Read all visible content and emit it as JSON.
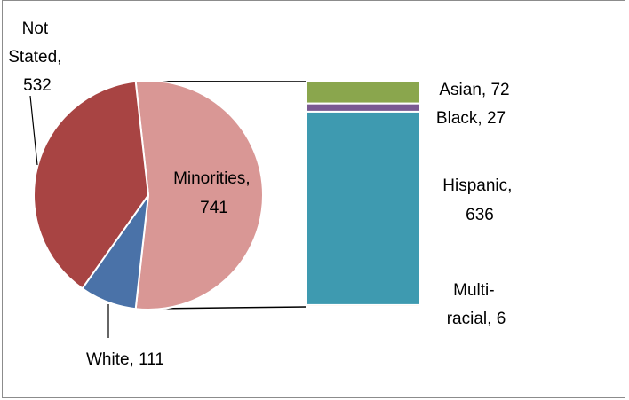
{
  "chart_data": {
    "type": "pie",
    "subtype": "bar-of-pie",
    "title": "",
    "pie": {
      "slices": [
        {
          "label": "Minorities",
          "value": 741,
          "color": "#d99795"
        },
        {
          "label": "White",
          "value": 111,
          "color": "#4a72a8"
        },
        {
          "label": "Not Stated",
          "value": 532,
          "color": "#a84443"
        }
      ]
    },
    "bar": {
      "segments": [
        {
          "label": "Asian",
          "value": 72,
          "color": "#8aa64d"
        },
        {
          "label": "Black",
          "value": 27,
          "color": "#7a5a92"
        },
        {
          "label": "Hispanic",
          "value": 636,
          "color": "#3e9ab0"
        },
        {
          "label": "Multi-racial",
          "value": 6,
          "color": "#e3863a"
        }
      ]
    },
    "data_labels": {
      "minorities": [
        "Minorities,",
        "741"
      ],
      "white": [
        "White, 111"
      ],
      "not_stated": [
        "Not",
        "Stated,",
        "532"
      ],
      "asian": [
        "Asian, 72"
      ],
      "black": [
        "Black, 27"
      ],
      "hispanic": [
        "Hispanic,",
        "636"
      ],
      "multiracial": [
        "Multi-",
        "racial, 6"
      ]
    }
  }
}
